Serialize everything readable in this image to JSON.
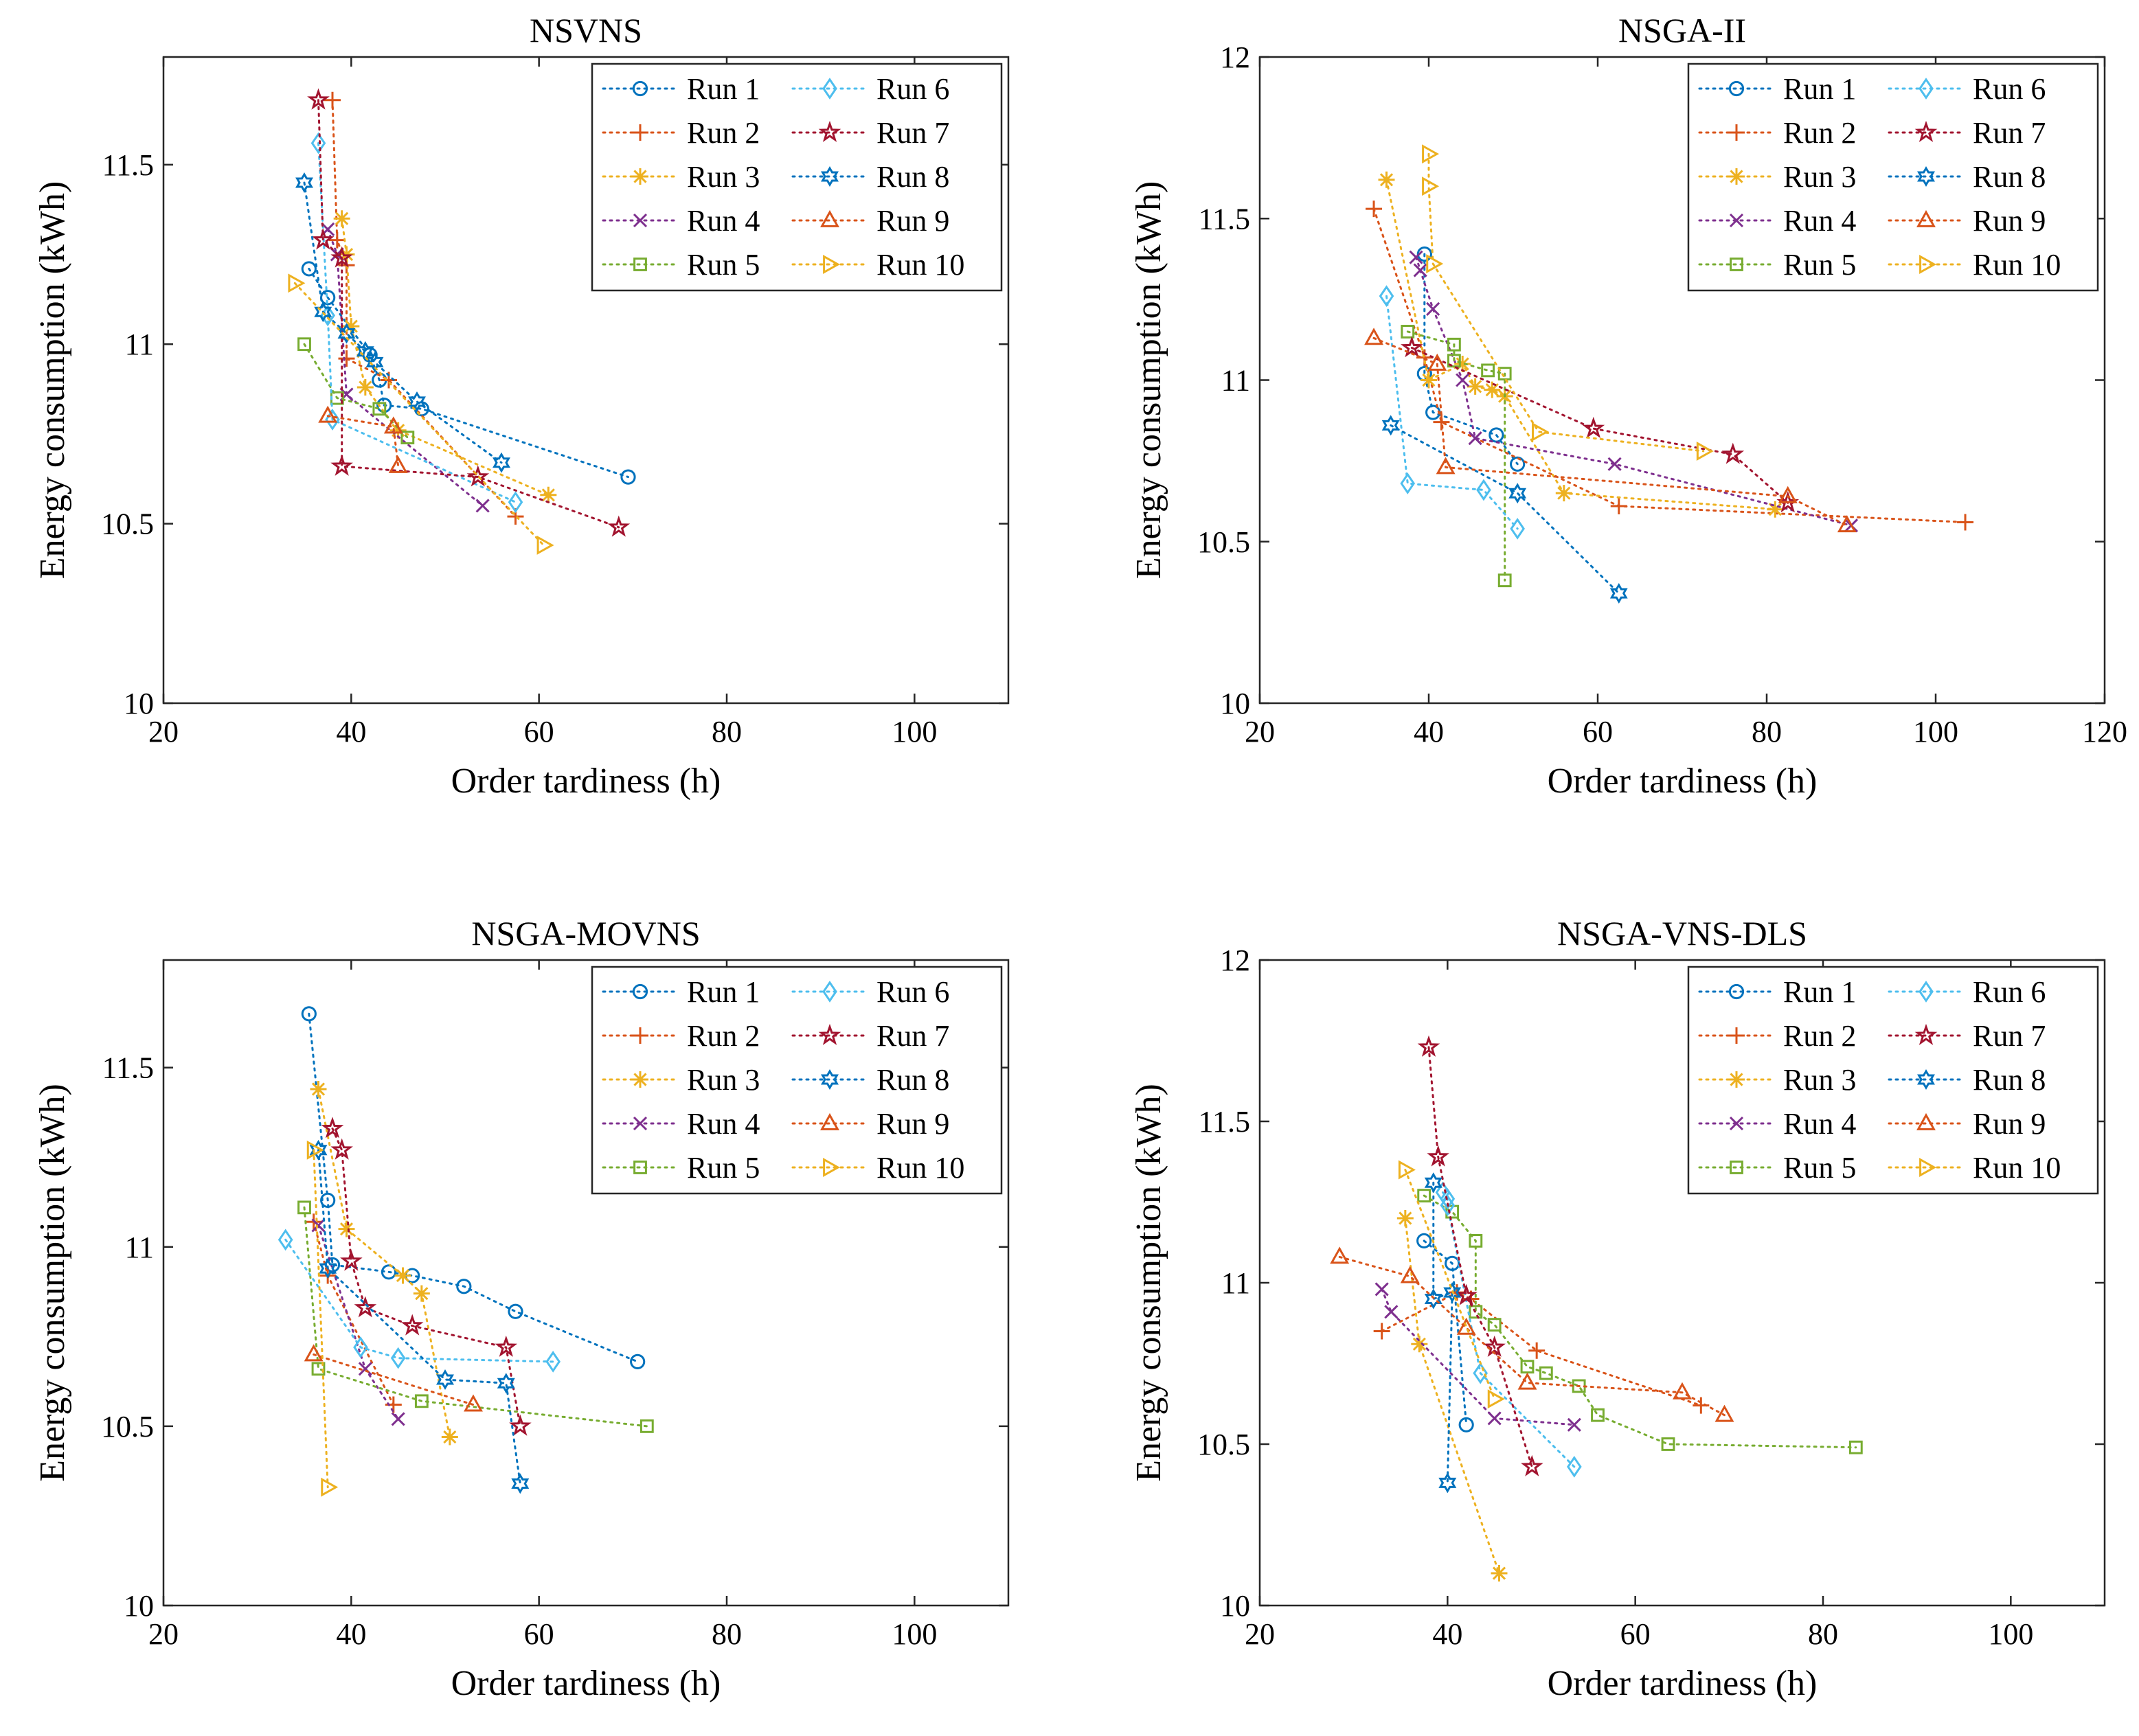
{
  "chart_data": [
    {
      "type": "scatter",
      "title": "NSVNS",
      "xlabel": "Order tardiness (h)",
      "ylabel": "Energy consumption (kWh)",
      "xlim": [
        20,
        110
      ],
      "ylim": [
        10,
        11.8
      ],
      "xticks": [
        "20",
        "40",
        "60",
        "80",
        "100"
      ],
      "yticks": [
        "10",
        "10.5",
        "11",
        "11.5"
      ],
      "xtick_values": [
        20,
        40,
        60,
        80,
        100
      ],
      "ytick_values": [
        10,
        10.5,
        11,
        11.5
      ],
      "series": [
        {
          "name": "Run 1",
          "x": [
            35.5,
            37.5,
            42,
            43,
            43.5,
            47.5,
            69.5
          ],
          "y": [
            11.21,
            11.13,
            10.97,
            10.9,
            10.83,
            10.82,
            10.63
          ]
        },
        {
          "name": "Run 2",
          "x": [
            38,
            38.5,
            39.5,
            39.5,
            44,
            57.5
          ],
          "y": [
            11.68,
            11.29,
            11.22,
            10.96,
            10.9,
            10.52
          ]
        },
        {
          "name": "Run 3",
          "x": [
            39,
            39.5,
            40,
            41.5,
            45,
            61
          ],
          "y": [
            11.35,
            11.25,
            11.05,
            10.88,
            10.76,
            10.58
          ]
        },
        {
          "name": "Run 4",
          "x": [
            37.5,
            38.5,
            39.5,
            54
          ],
          "y": [
            11.32,
            11.25,
            10.86,
            10.55
          ]
        },
        {
          "name": "Run 5",
          "x": [
            35,
            38.5,
            43,
            46
          ],
          "y": [
            11.0,
            10.85,
            10.82,
            10.74
          ]
        },
        {
          "name": "Run 6",
          "x": [
            36.5,
            37.5,
            38,
            57.5
          ],
          "y": [
            11.56,
            11.08,
            10.79,
            10.56
          ]
        },
        {
          "name": "Run 7",
          "x": [
            36.5,
            37,
            39,
            39,
            53.5,
            68.5
          ],
          "y": [
            11.68,
            11.29,
            11.24,
            10.66,
            10.63,
            10.49
          ]
        },
        {
          "name": "Run 8",
          "x": [
            35,
            37,
            39.5,
            41.5,
            42.5,
            47,
            56
          ],
          "y": [
            11.45,
            11.09,
            11.03,
            10.98,
            10.95,
            10.84,
            10.67
          ]
        },
        {
          "name": "Run 9",
          "x": [
            37.5,
            44.5,
            45
          ],
          "y": [
            10.8,
            10.77,
            10.66
          ]
        },
        {
          "name": "Run 10",
          "x": [
            34,
            60.5
          ],
          "y": [
            11.17,
            10.44
          ]
        }
      ],
      "legend": "top-right"
    },
    {
      "type": "scatter",
      "title": "NSGA-II",
      "xlabel": "Order tardiness (h)",
      "ylabel": "Energy consumption (kWh)",
      "xlim": [
        20,
        120
      ],
      "ylim": [
        10,
        12
      ],
      "xticks": [
        "20",
        "40",
        "60",
        "80",
        "100",
        "120"
      ],
      "yticks": [
        "10",
        "10.5",
        "11",
        "11.5",
        "12"
      ],
      "xtick_values": [
        20,
        40,
        60,
        80,
        100,
        120
      ],
      "ytick_values": [
        10,
        10.5,
        11,
        11.5,
        12
      ],
      "series": [
        {
          "name": "Run 1",
          "x": [
            39.5,
            39.5,
            40.5,
            48,
            50.5
          ],
          "y": [
            11.39,
            11.02,
            10.9,
            10.83,
            10.74
          ]
        },
        {
          "name": "Run 2",
          "x": [
            33.5,
            39.5,
            41.5,
            62.5,
            103.5
          ],
          "y": [
            11.53,
            11.07,
            10.87,
            10.61,
            10.56
          ]
        },
        {
          "name": "Run 3",
          "x": [
            35,
            40,
            44,
            45.5,
            47.5,
            49,
            56,
            81
          ],
          "y": [
            11.62,
            11.0,
            11.05,
            10.98,
            10.97,
            10.95,
            10.65,
            10.6
          ]
        },
        {
          "name": "Run 4",
          "x": [
            38.5,
            39,
            40.5,
            44,
            45.5,
            62,
            90
          ],
          "y": [
            11.38,
            11.34,
            11.22,
            11.0,
            10.82,
            10.74,
            10.55
          ]
        },
        {
          "name": "Run 5",
          "x": [
            37.5,
            43,
            43,
            47,
            49,
            49
          ],
          "y": [
            11.15,
            11.11,
            11.06,
            11.03,
            11.02,
            10.38
          ]
        },
        {
          "name": "Run 6",
          "x": [
            35,
            37.5,
            46.5,
            50.5
          ],
          "y": [
            11.26,
            10.68,
            10.66,
            10.54
          ]
        },
        {
          "name": "Run 7",
          "x": [
            38,
            59.5,
            76,
            82.5
          ],
          "y": [
            11.1,
            10.85,
            10.77,
            10.62
          ]
        },
        {
          "name": "Run 8",
          "x": [
            35.5,
            50.5,
            62.5
          ],
          "y": [
            10.86,
            10.65,
            10.34
          ]
        },
        {
          "name": "Run 9",
          "x": [
            33.5,
            41,
            42,
            82.5,
            89.5
          ],
          "y": [
            11.13,
            11.05,
            10.73,
            10.64,
            10.55
          ]
        },
        {
          "name": "Run 10",
          "x": [
            40,
            40,
            40.5,
            53,
            72.5
          ],
          "y": [
            11.7,
            11.6,
            11.36,
            10.84,
            10.78
          ]
        }
      ],
      "legend": "top-right"
    },
    {
      "type": "scatter",
      "title": "NSGA-MOVNS",
      "xlabel": "Order tardiness (h)",
      "ylabel": "Energy consumption (kWh)",
      "xlim": [
        20,
        110
      ],
      "ylim": [
        10,
        11.8
      ],
      "xticks": [
        "20",
        "40",
        "60",
        "80",
        "100"
      ],
      "yticks": [
        "10",
        "10.5",
        "11",
        "11.5"
      ],
      "xtick_values": [
        20,
        40,
        60,
        80,
        100
      ],
      "ytick_values": [
        10,
        10.5,
        11,
        11.5
      ],
      "series": [
        {
          "name": "Run 1",
          "x": [
            35.5,
            37.5,
            38,
            44,
            46.5,
            52,
            57.5,
            70.5
          ],
          "y": [
            11.65,
            11.13,
            10.95,
            10.93,
            10.92,
            10.89,
            10.82,
            10.68
          ]
        },
        {
          "name": "Run 2",
          "x": [
            36,
            37.5,
            44.5
          ],
          "y": [
            11.07,
            10.92,
            10.56
          ]
        },
        {
          "name": "Run 3",
          "x": [
            36.5,
            39.5,
            45.5,
            47.5,
            50.5
          ],
          "y": [
            11.44,
            11.05,
            10.92,
            10.87,
            10.47
          ]
        },
        {
          "name": "Run 4",
          "x": [
            36.5,
            41.5,
            45
          ],
          "y": [
            11.06,
            10.66,
            10.52
          ]
        },
        {
          "name": "Run 5",
          "x": [
            35,
            36.5,
            47.5,
            71.5
          ],
          "y": [
            11.11,
            10.66,
            10.57,
            10.5
          ]
        },
        {
          "name": "Run 6",
          "x": [
            33,
            41,
            45,
            61.5
          ],
          "y": [
            11.02,
            10.72,
            10.69,
            10.68
          ]
        },
        {
          "name": "Run 7",
          "x": [
            38,
            39,
            40,
            41.5,
            46.5,
            56.5,
            58
          ],
          "y": [
            11.33,
            11.27,
            10.96,
            10.83,
            10.78,
            10.72,
            10.5
          ]
        },
        {
          "name": "Run 8",
          "x": [
            36.5,
            37.5,
            50,
            56.5,
            58
          ],
          "y": [
            11.27,
            10.94,
            10.63,
            10.62,
            10.34
          ]
        },
        {
          "name": "Run 9",
          "x": [
            36,
            53
          ],
          "y": [
            10.7,
            10.56
          ]
        },
        {
          "name": "Run 10",
          "x": [
            36,
            37.5
          ],
          "y": [
            11.27,
            10.33
          ]
        }
      ],
      "legend": "top-right"
    },
    {
      "type": "scatter",
      "title": "NSGA-VNS-DLS",
      "xlabel": "Order tardiness (h)",
      "ylabel": "Energy consumption (kWh)",
      "xlim": [
        20,
        110
      ],
      "ylim": [
        10,
        12
      ],
      "xticks": [
        "20",
        "40",
        "60",
        "80",
        "100"
      ],
      "yticks": [
        "10",
        "10.5",
        "11",
        "11.5",
        "12"
      ],
      "xtick_values": [
        20,
        40,
        60,
        80,
        100
      ],
      "ytick_values": [
        10,
        10.5,
        11,
        11.5,
        12
      ],
      "series": [
        {
          "name": "Run 1",
          "x": [
            37.5,
            40.5,
            42
          ],
          "y": [
            11.13,
            11.06,
            10.56
          ]
        },
        {
          "name": "Run 2",
          "x": [
            33,
            41,
            42.5,
            49.5,
            67
          ],
          "y": [
            10.85,
            10.97,
            10.95,
            10.79,
            10.62
          ]
        },
        {
          "name": "Run 3",
          "x": [
            35.5,
            37,
            45.5
          ],
          "y": [
            11.2,
            10.81,
            10.1
          ]
        },
        {
          "name": "Run 4",
          "x": [
            33,
            34,
            45,
            53.5
          ],
          "y": [
            10.98,
            10.91,
            10.58,
            10.56
          ]
        },
        {
          "name": "Run 5",
          "x": [
            37.5,
            40.5,
            43,
            43,
            45,
            48.5,
            50.5,
            54,
            56,
            63.5,
            83.5
          ],
          "y": [
            11.27,
            11.22,
            11.13,
            10.91,
            10.87,
            10.74,
            10.72,
            10.68,
            10.59,
            10.5,
            10.49
          ]
        },
        {
          "name": "Run 6",
          "x": [
            39.5,
            40,
            40,
            43.5,
            53.5
          ],
          "y": [
            11.28,
            11.26,
            11.24,
            10.72,
            10.43
          ]
        },
        {
          "name": "Run 7",
          "x": [
            38,
            39,
            42,
            45,
            49
          ],
          "y": [
            11.73,
            11.39,
            10.96,
            10.8,
            10.43
          ]
        },
        {
          "name": "Run 8",
          "x": [
            38.5,
            38.5,
            40.5,
            40
          ],
          "y": [
            11.31,
            10.95,
            10.97,
            10.38
          ]
        },
        {
          "name": "Run 9",
          "x": [
            28.5,
            36,
            42,
            48.5,
            65,
            69.5
          ],
          "y": [
            11.08,
            11.02,
            10.86,
            10.69,
            10.66,
            10.59
          ]
        },
        {
          "name": "Run 10",
          "x": [
            35.5,
            45
          ],
          "y": [
            11.35,
            10.64
          ]
        }
      ],
      "legend": "top-right"
    }
  ],
  "colors": [
    "#0072bd",
    "#d95319",
    "#edb120",
    "#7e2f8e",
    "#77ac30",
    "#4dbeee",
    "#a2142f",
    "#0072bd",
    "#d95319",
    "#edb120"
  ],
  "markers": [
    "circle",
    "plus",
    "asterisk",
    "x",
    "square",
    "diamond",
    "pentagram",
    "hexagram",
    "triangle-up",
    "triangle-right"
  ]
}
